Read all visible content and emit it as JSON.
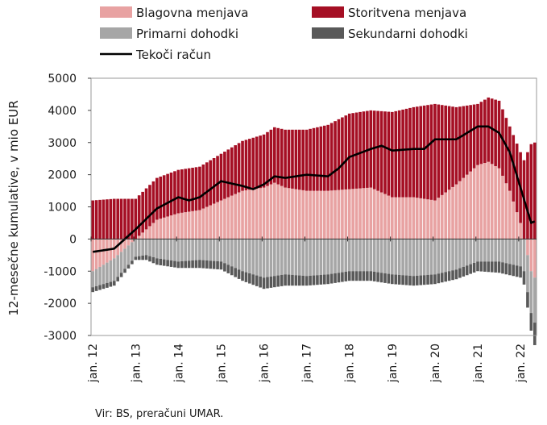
{
  "colors": {
    "goods": "#e8a2a2",
    "services": "#a50f24",
    "primary": "#a6a6a6",
    "secondary": "#595959",
    "current_account": "#000000"
  },
  "legend": [
    {
      "name": "Blagovna menjava",
      "kind": "box",
      "color_key": "goods"
    },
    {
      "name": "Storitvena menjava",
      "kind": "box",
      "color_key": "services"
    },
    {
      "name": "Primarni dohodki",
      "kind": "box",
      "color_key": "primary"
    },
    {
      "name": "Sekundarni dohodki",
      "kind": "box",
      "color_key": "secondary"
    },
    {
      "name": "Tekoči račun",
      "kind": "line",
      "color_key": "current_account"
    }
  ],
  "source": "Vir: BS, preračuni UMAR.",
  "chart_data": {
    "type": "bar",
    "stacked": true,
    "ylabel": "12-mesečne kumulative, v mio EUR",
    "xlabel": "",
    "ylim": [
      -3000,
      5000
    ],
    "yticks": [
      5000,
      4000,
      3000,
      2000,
      1000,
      0,
      -1000,
      -2000,
      -3000
    ],
    "ytick_labels": [
      "5000",
      "4000",
      "3000",
      "2000",
      "1000",
      "0",
      "-1000",
      "-2000",
      "-3000"
    ],
    "xtick_labels": [
      "jan. 12",
      "jan. 13",
      "jan. 14",
      "jan. 15",
      "jan. 16",
      "jan. 17",
      "jan. 18",
      "jan. 19",
      "jan. 20",
      "jan. 21",
      "jan. 22"
    ],
    "grid": false,
    "legend_position": "top",
    "frequency": "monthly",
    "series_anchors": {
      "goods": [
        [
          "2012-01",
          -1000
        ],
        [
          "2012-07",
          -600
        ],
        [
          "2013-01",
          0
        ],
        [
          "2013-07",
          600
        ],
        [
          "2014-01",
          800
        ],
        [
          "2014-07",
          900
        ],
        [
          "2015-01",
          1200
        ],
        [
          "2015-07",
          1500
        ],
        [
          "2016-01",
          1600
        ],
        [
          "2016-04",
          1750
        ],
        [
          "2016-07",
          1600
        ],
        [
          "2017-01",
          1500
        ],
        [
          "2017-07",
          1500
        ],
        [
          "2018-01",
          1550
        ],
        [
          "2018-07",
          1600
        ],
        [
          "2019-01",
          1300
        ],
        [
          "2019-07",
          1300
        ],
        [
          "2020-01",
          1200
        ],
        [
          "2020-07",
          1700
        ],
        [
          "2021-01",
          2300
        ],
        [
          "2021-04",
          2400
        ],
        [
          "2021-07",
          2200
        ],
        [
          "2021-10",
          1500
        ],
        [
          "2022-01",
          500
        ],
        [
          "2022-04",
          -1000
        ],
        [
          "2022-05",
          -1200
        ]
      ],
      "services": [
        [
          "2012-01",
          1200
        ],
        [
          "2012-07",
          1250
        ],
        [
          "2013-01",
          1250
        ],
        [
          "2013-07",
          1300
        ],
        [
          "2014-01",
          1350
        ],
        [
          "2014-07",
          1350
        ],
        [
          "2015-01",
          1450
        ],
        [
          "2015-07",
          1550
        ],
        [
          "2016-01",
          1650
        ],
        [
          "2016-07",
          1800
        ],
        [
          "2017-01",
          1900
        ],
        [
          "2017-07",
          2050
        ],
        [
          "2018-01",
          2350
        ],
        [
          "2018-07",
          2400
        ],
        [
          "2019-01",
          2650
        ],
        [
          "2019-07",
          2800
        ],
        [
          "2020-01",
          3000
        ],
        [
          "2020-07",
          2400
        ],
        [
          "2021-01",
          1900
        ],
        [
          "2021-04",
          2000
        ],
        [
          "2021-07",
          2100
        ],
        [
          "2021-10",
          2000
        ],
        [
          "2022-01",
          2200
        ],
        [
          "2022-04",
          2950
        ],
        [
          "2022-05",
          3000
        ]
      ],
      "primary": [
        [
          "2012-01",
          -500
        ],
        [
          "2012-07",
          -700
        ],
        [
          "2013-01",
          -550
        ],
        [
          "2013-04",
          -500
        ],
        [
          "2013-07",
          -600
        ],
        [
          "2014-01",
          -700
        ],
        [
          "2014-07",
          -650
        ],
        [
          "2015-01",
          -700
        ],
        [
          "2015-07",
          -1000
        ],
        [
          "2016-01",
          -1200
        ],
        [
          "2016-07",
          -1100
        ],
        [
          "2017-01",
          -1150
        ],
        [
          "2017-07",
          -1100
        ],
        [
          "2018-01",
          -1000
        ],
        [
          "2018-07",
          -1000
        ],
        [
          "2019-01",
          -1100
        ],
        [
          "2019-07",
          -1150
        ],
        [
          "2020-01",
          -1100
        ],
        [
          "2020-07",
          -950
        ],
        [
          "2021-01",
          -700
        ],
        [
          "2021-07",
          -700
        ],
        [
          "2022-01",
          -850
        ],
        [
          "2022-04",
          -1300
        ],
        [
          "2022-05",
          -1400
        ]
      ],
      "secondary": [
        [
          "2012-01",
          -150
        ],
        [
          "2012-07",
          -150
        ],
        [
          "2013-01",
          -100
        ],
        [
          "2013-07",
          -200
        ],
        [
          "2014-01",
          -200
        ],
        [
          "2014-07",
          -250
        ],
        [
          "2015-01",
          -250
        ],
        [
          "2015-07",
          -300
        ],
        [
          "2016-01",
          -350
        ],
        [
          "2016-07",
          -350
        ],
        [
          "2017-01",
          -300
        ],
        [
          "2017-07",
          -300
        ],
        [
          "2018-01",
          -300
        ],
        [
          "2018-07",
          -300
        ],
        [
          "2019-01",
          -300
        ],
        [
          "2019-07",
          -300
        ],
        [
          "2020-01",
          -300
        ],
        [
          "2020-07",
          -300
        ],
        [
          "2021-01",
          -300
        ],
        [
          "2021-07",
          -350
        ],
        [
          "2022-01",
          -350
        ],
        [
          "2022-04",
          -550
        ],
        [
          "2022-05",
          -700
        ]
      ],
      "current_account": [
        [
          "2012-01",
          -400
        ],
        [
          "2012-07",
          -300
        ],
        [
          "2012-10",
          0
        ],
        [
          "2013-01",
          300
        ],
        [
          "2013-07",
          950
        ],
        [
          "2014-01",
          1300
        ],
        [
          "2014-04",
          1200
        ],
        [
          "2014-07",
          1300
        ],
        [
          "2015-01",
          1800
        ],
        [
          "2015-07",
          1650
        ],
        [
          "2015-10",
          1550
        ],
        [
          "2016-01",
          1700
        ],
        [
          "2016-04",
          1950
        ],
        [
          "2016-07",
          1900
        ],
        [
          "2017-01",
          2000
        ],
        [
          "2017-07",
          1950
        ],
        [
          "2017-10",
          2200
        ],
        [
          "2018-01",
          2550
        ],
        [
          "2018-07",
          2800
        ],
        [
          "2018-10",
          2900
        ],
        [
          "2019-01",
          2750
        ],
        [
          "2019-07",
          2800
        ],
        [
          "2019-10",
          2800
        ],
        [
          "2020-01",
          3100
        ],
        [
          "2020-07",
          3100
        ],
        [
          "2021-01",
          3500
        ],
        [
          "2021-04",
          3500
        ],
        [
          "2021-07",
          3300
        ],
        [
          "2021-10",
          2700
        ],
        [
          "2022-01",
          1600
        ],
        [
          "2022-04",
          500
        ],
        [
          "2022-05",
          550
        ]
      ]
    },
    "series": [
      {
        "name": "Blagovna menjava",
        "key": "goods",
        "type": "bar"
      },
      {
        "name": "Storitvena menjava",
        "key": "services",
        "type": "bar"
      },
      {
        "name": "Primarni dohodki",
        "key": "primary",
        "type": "bar"
      },
      {
        "name": "Sekundarni dohodki",
        "key": "secondary",
        "type": "bar"
      },
      {
        "name": "Tekoči račun",
        "key": "current_account",
        "type": "line"
      }
    ]
  }
}
